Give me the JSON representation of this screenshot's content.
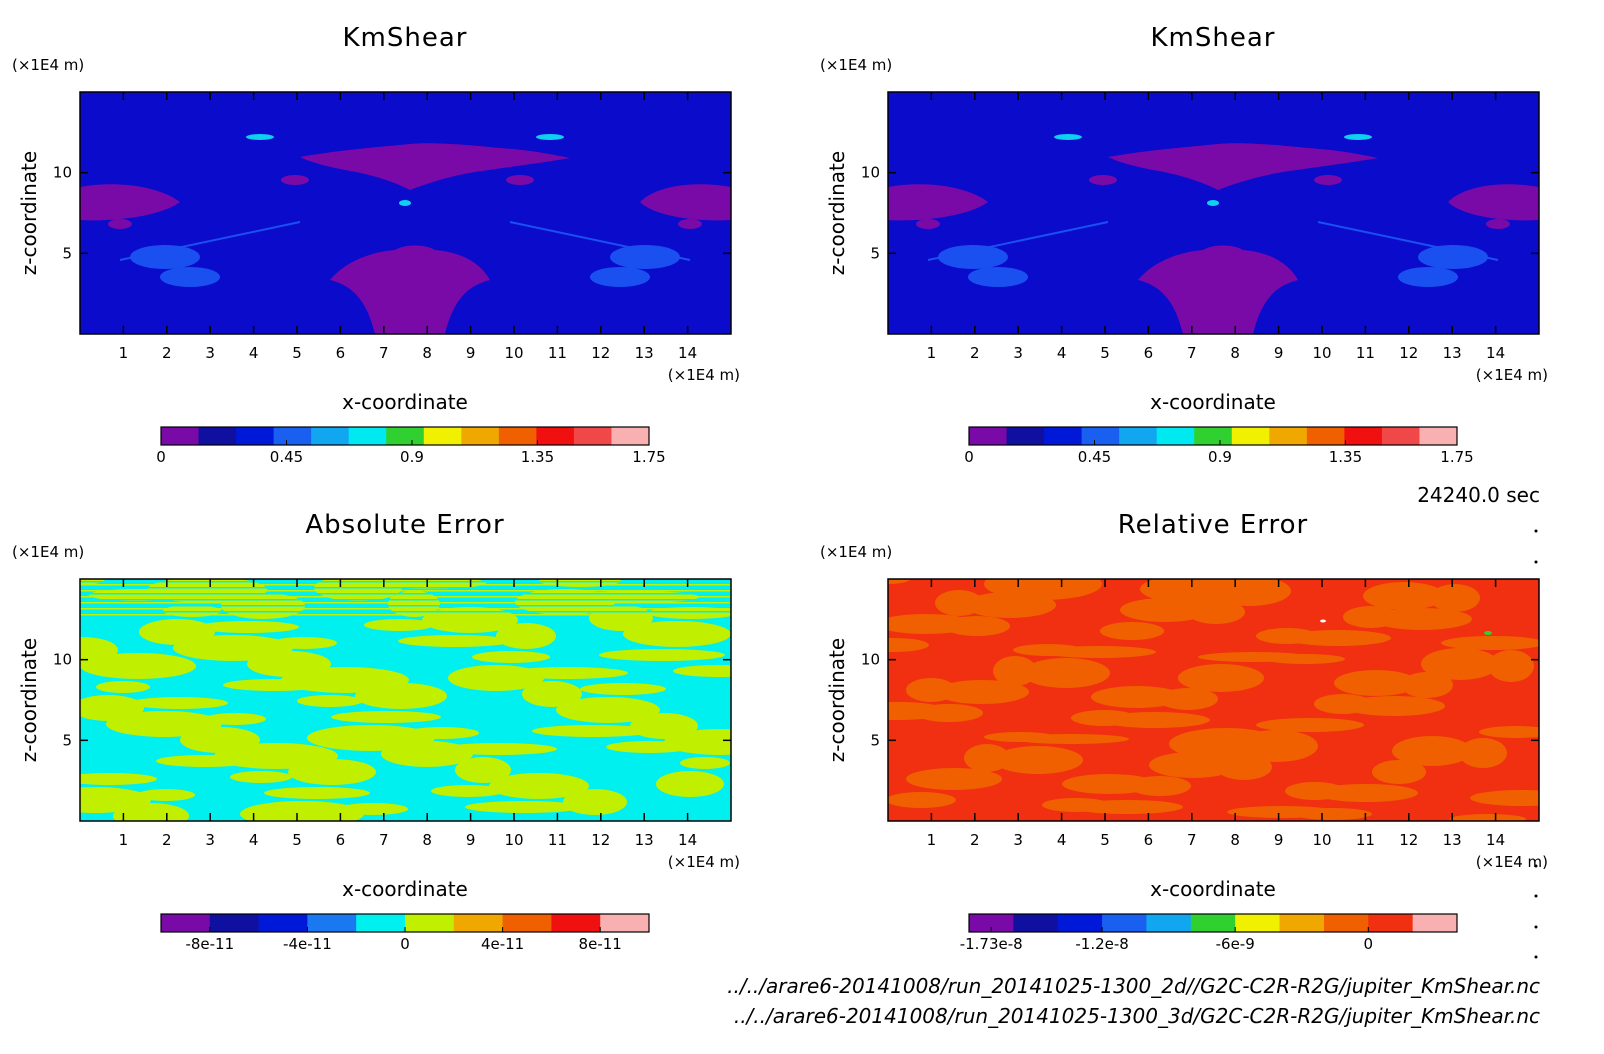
{
  "time_label": "24240.0 sec",
  "file_paths": [
    "../../arare6-20141008/run_20141025-1300_2d//G2C-C2R-R2G/jupiter_KmShear.nc",
    "../../arare6-20141008/run_20141025-1300_3d/G2C-C2R-R2G/jupiter_KmShear.nc"
  ],
  "chart_data": [
    {
      "type": "heatmap",
      "title": "KmShear",
      "xlabel": "x-coordinate",
      "ylabel": "z-coordinate",
      "xunit": "(×1E4 m)",
      "yunit": "(×1E4 m)",
      "xlim": [
        0,
        15
      ],
      "ylim": [
        0,
        15
      ],
      "xticks": [
        "1",
        "2",
        "3",
        "4",
        "5",
        "6",
        "7",
        "8",
        "9",
        "10",
        "11",
        "12",
        "13",
        "14"
      ],
      "yticks": [
        "5",
        "10"
      ],
      "background": "#0b0bcc",
      "colorbar": {
        "colors": [
          "#7a0aa8",
          "#1010a0",
          "#0018d8",
          "#1a60f0",
          "#10a6f0",
          "#00e8f0",
          "#30d030",
          "#f0f000",
          "#f0a800",
          "#f06000",
          "#f01010",
          "#f04848",
          "#f8b0b0"
        ],
        "labels": [
          "0",
          "0.45",
          "0.9",
          "1.35",
          "1.75"
        ]
      }
    },
    {
      "type": "heatmap",
      "title": "KmShear",
      "xlabel": "x-coordinate",
      "ylabel": "z-coordinate",
      "xunit": "(×1E4 m)",
      "yunit": "(×1E4 m)",
      "xlim": [
        0,
        15
      ],
      "ylim": [
        0,
        15
      ],
      "xticks": [
        "1",
        "2",
        "3",
        "4",
        "5",
        "6",
        "7",
        "8",
        "9",
        "10",
        "11",
        "12",
        "13",
        "14"
      ],
      "yticks": [
        "5",
        "10"
      ],
      "background": "#0b0bcc",
      "colorbar": {
        "colors": [
          "#7a0aa8",
          "#1010a0",
          "#0018d8",
          "#1a60f0",
          "#10a6f0",
          "#00e8f0",
          "#30d030",
          "#f0f000",
          "#f0a800",
          "#f06000",
          "#f01010",
          "#f04848",
          "#f8b0b0"
        ],
        "labels": [
          "0",
          "0.45",
          "0.9",
          "1.35",
          "1.75"
        ]
      }
    },
    {
      "type": "heatmap",
      "title": "Absolute Error",
      "xlabel": "x-coordinate",
      "ylabel": "z-coordinate",
      "xunit": "(×1E4 m)",
      "yunit": "(×1E4 m)",
      "xlim": [
        0,
        15
      ],
      "ylim": [
        0,
        15
      ],
      "xticks": [
        "1",
        "2",
        "3",
        "4",
        "5",
        "6",
        "7",
        "8",
        "9",
        "10",
        "11",
        "12",
        "13",
        "14"
      ],
      "yticks": [
        "5",
        "10"
      ],
      "background": "#00f0f0",
      "colorbar": {
        "colors": [
          "#7a0aa8",
          "#1010a0",
          "#0018d8",
          "#1a78f0",
          "#00f0f0",
          "#c0f000",
          "#f0a800",
          "#f06000",
          "#f01010",
          "#f8b0b0"
        ],
        "labels": [
          "-8e-11",
          "-4e-11",
          "0",
          "4e-11",
          "8e-11"
        ]
      }
    },
    {
      "type": "heatmap",
      "title": "Relative Error",
      "xlabel": "x-coordinate",
      "ylabel": "z-coordinate",
      "xunit": "(×1E4 m)",
      "yunit": "(×1E4 m)",
      "xlim": [
        0,
        15
      ],
      "ylim": [
        0,
        15
      ],
      "xticks": [
        "1",
        "2",
        "3",
        "4",
        "5",
        "6",
        "7",
        "8",
        "9",
        "10",
        "11",
        "12",
        "13",
        "14"
      ],
      "yticks": [
        "5",
        "10"
      ],
      "background": "#f03010",
      "colorbar": {
        "colors": [
          "#7a0aa8",
          "#1010a0",
          "#0018d8",
          "#1a60f0",
          "#10a6f0",
          "#30d030",
          "#f0f000",
          "#f0a800",
          "#f06000",
          "#f03010",
          "#f8b0b0"
        ],
        "labels": [
          "-1.73e-8",
          "-1.2e-8",
          "-6e-9",
          "0"
        ]
      }
    }
  ]
}
